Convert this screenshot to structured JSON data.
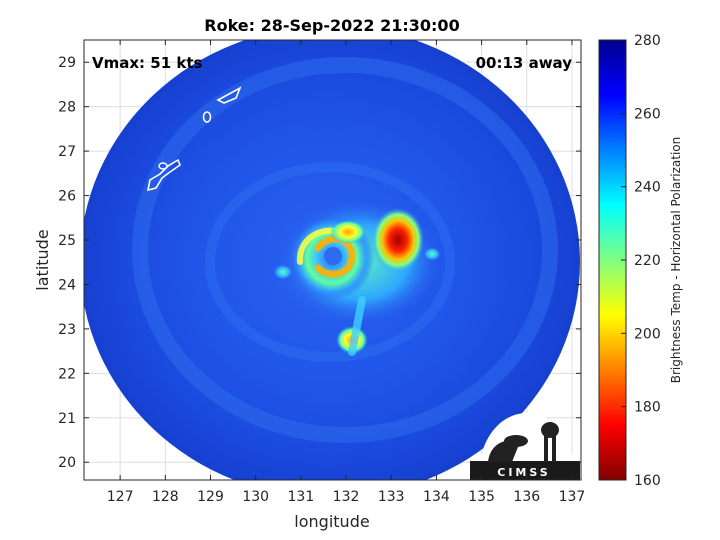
{
  "chart_data": {
    "type": "heatmap",
    "title": "Roke: 28-Sep-2022 21:30:00",
    "xlabel": "longitude",
    "ylabel": "latitude",
    "xlim": [
      126.2,
      137.2
    ],
    "ylim": [
      19.6,
      29.5
    ],
    "xticks": [
      "127",
      "128",
      "129",
      "130",
      "131",
      "132",
      "133",
      "134",
      "135",
      "136",
      "137"
    ],
    "yticks": [
      "20",
      "21",
      "22",
      "23",
      "24",
      "25",
      "26",
      "27",
      "28",
      "29"
    ],
    "grid": true,
    "annotations": {
      "vmax": "Vmax: 51 kts",
      "time_away": "00:13 away"
    },
    "colorbar": {
      "label": "Brightness Temp - Horizontal Polarization",
      "min": 160,
      "max": 280,
      "ticks": [
        "160",
        "180",
        "200",
        "220",
        "240",
        "260",
        "280"
      ],
      "colormap": [
        "#800000",
        "#ff0000",
        "#ff8000",
        "#ffff00",
        "#80ff80",
        "#00ffff",
        "#0080ff",
        "#0000ff",
        "#00008f"
      ]
    },
    "swath": {
      "center_lon": 131.6,
      "center_lat": 24.6,
      "background_bt": 262
    },
    "storm": {
      "center_lon": 131.8,
      "center_lat": 24.6,
      "min_bt": 168,
      "min_bt_lon": 133.3,
      "min_bt_lat": 24.95
    },
    "logo": "CIMSS"
  }
}
